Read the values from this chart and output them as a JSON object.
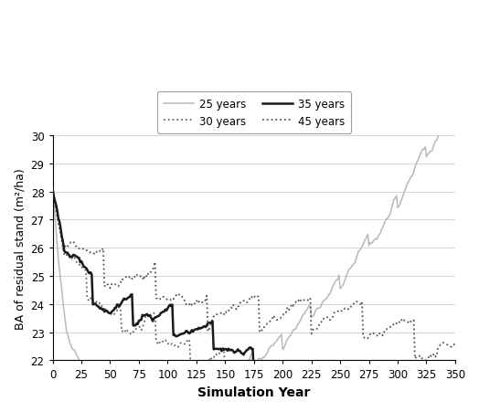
{
  "title": "",
  "xlabel": "Simulation Year",
  "ylabel": "BA of residual stand (m²/ha)",
  "xlim": [
    0,
    350
  ],
  "ylim": [
    22,
    30
  ],
  "xticks": [
    0,
    25,
    50,
    75,
    100,
    125,
    150,
    175,
    200,
    225,
    250,
    275,
    300,
    325,
    350
  ],
  "yticks": [
    22,
    23,
    24,
    25,
    26,
    27,
    28,
    29,
    30
  ],
  "sim_years": 350,
  "initial_ba": 28.1,
  "background_color": "#ffffff",
  "grid_color": "#cccccc",
  "color_25": "#b8b8b8",
  "color_30": "#666666",
  "color_35": "#1a1a1a",
  "color_45": "#555555",
  "lw_25": 1.1,
  "lw_30": 1.3,
  "lw_35": 1.8,
  "lw_45": 1.3
}
